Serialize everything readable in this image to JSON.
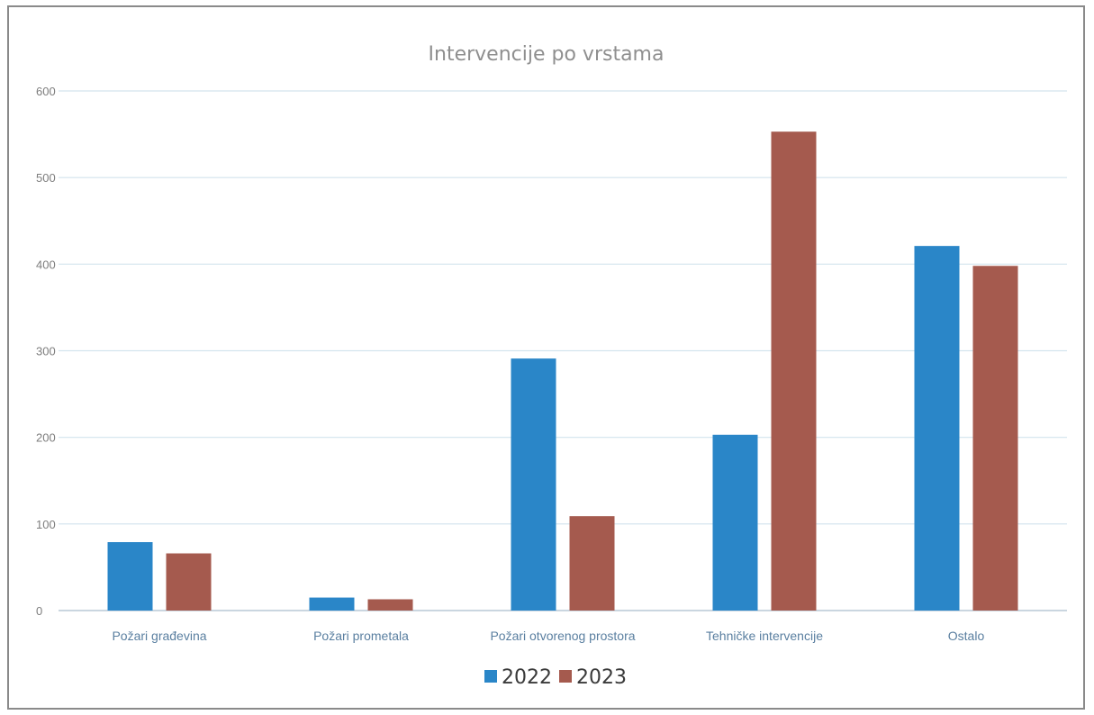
{
  "chart_data": {
    "type": "bar",
    "title": "Intervencije po vrstama",
    "xlabel": "",
    "ylabel": "",
    "ylim": [
      0,
      600
    ],
    "yticks": [
      0,
      100,
      200,
      300,
      400,
      500,
      600
    ],
    "grid": true,
    "legend_position": "bottom",
    "categories": [
      "Požari građevina",
      "Požari prometala",
      "Požari otvorenog prostora",
      "Tehničke intervencije",
      "Ostalo"
    ],
    "series": [
      {
        "name": "2022",
        "color": "#2a86c8",
        "values": [
          79,
          15,
          291,
          203,
          421
        ]
      },
      {
        "name": "2023",
        "color": "#a55a4e",
        "values": [
          66,
          13,
          109,
          553,
          398
        ]
      }
    ]
  }
}
